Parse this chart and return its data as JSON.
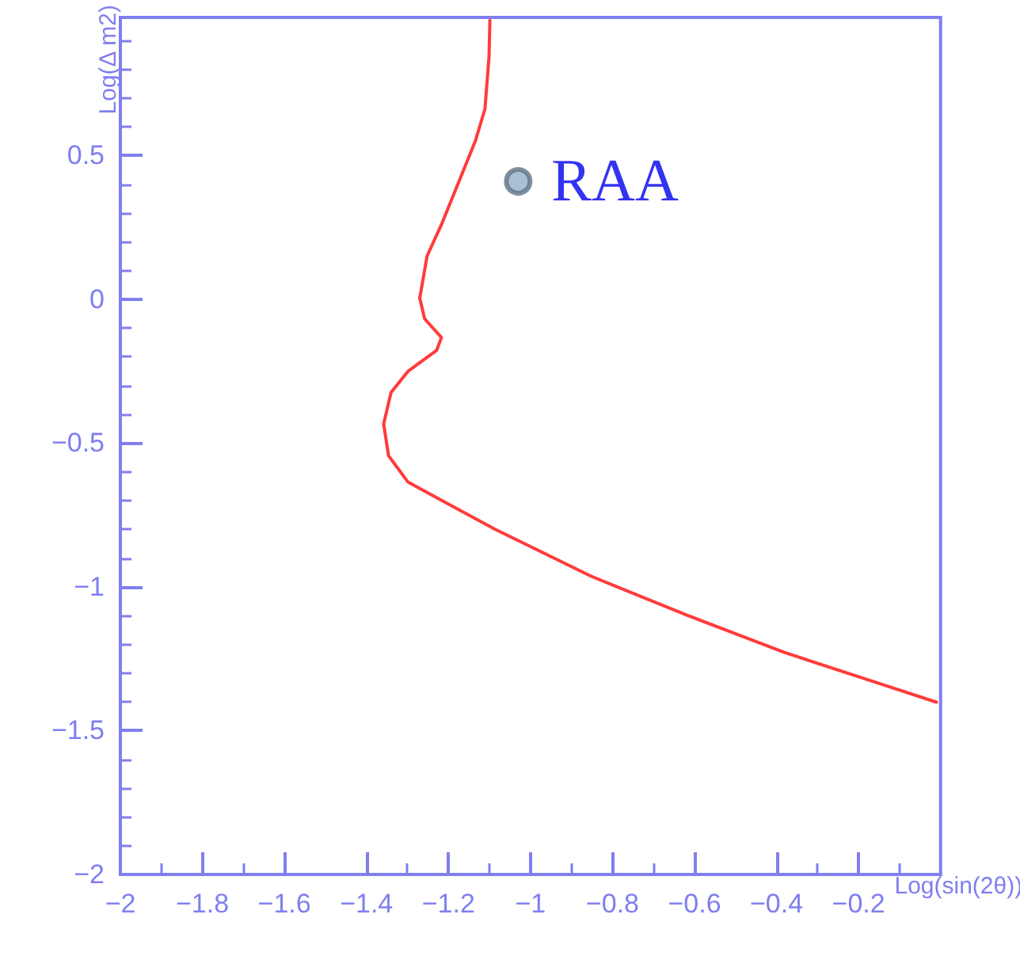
{
  "chart_data": {
    "type": "line",
    "xlabel": "Log(sin(2θ))",
    "ylabel": "Log(Δ m2)",
    "xlim": [
      -2,
      0
    ],
    "ylim": [
      -2,
      0.98
    ],
    "xticks": [
      -2,
      -1.8,
      -1.6,
      -1.4,
      -1.2,
      -1,
      -0.8,
      -0.6,
      -0.4,
      -0.2
    ],
    "yticks": [
      -2,
      -1.5,
      -1,
      -0.5,
      0,
      0.5
    ],
    "grid": false,
    "legend": false,
    "line_style": "solid",
    "series": [
      {
        "color": "#ff3b3b",
        "marker": "none",
        "x": [
          -1.099,
          -1.101,
          -1.111,
          -1.134,
          -1.17,
          -1.217,
          -1.252,
          -1.27,
          -1.258,
          -1.217,
          -1.229,
          -1.299,
          -1.34,
          -1.358,
          -1.346,
          -1.299,
          -1.205,
          -1.087,
          -0.852,
          -0.616,
          -0.381,
          -0.145,
          -0.01
        ],
        "values": [
          0.97,
          0.845,
          0.662,
          0.552,
          0.425,
          0.26,
          0.151,
          0.004,
          -0.068,
          -0.133,
          -0.178,
          -0.251,
          -0.324,
          -0.434,
          -0.544,
          -0.635,
          -0.708,
          -0.799,
          -0.963,
          -1.1,
          -1.228,
          -1.338,
          -1.401
        ]
      },
      {
        "type": "scatter",
        "name": "RAA",
        "color": "#93afc9",
        "marker": "circle",
        "x": [
          -1.03
        ],
        "values": [
          0.41
        ]
      }
    ]
  }
}
